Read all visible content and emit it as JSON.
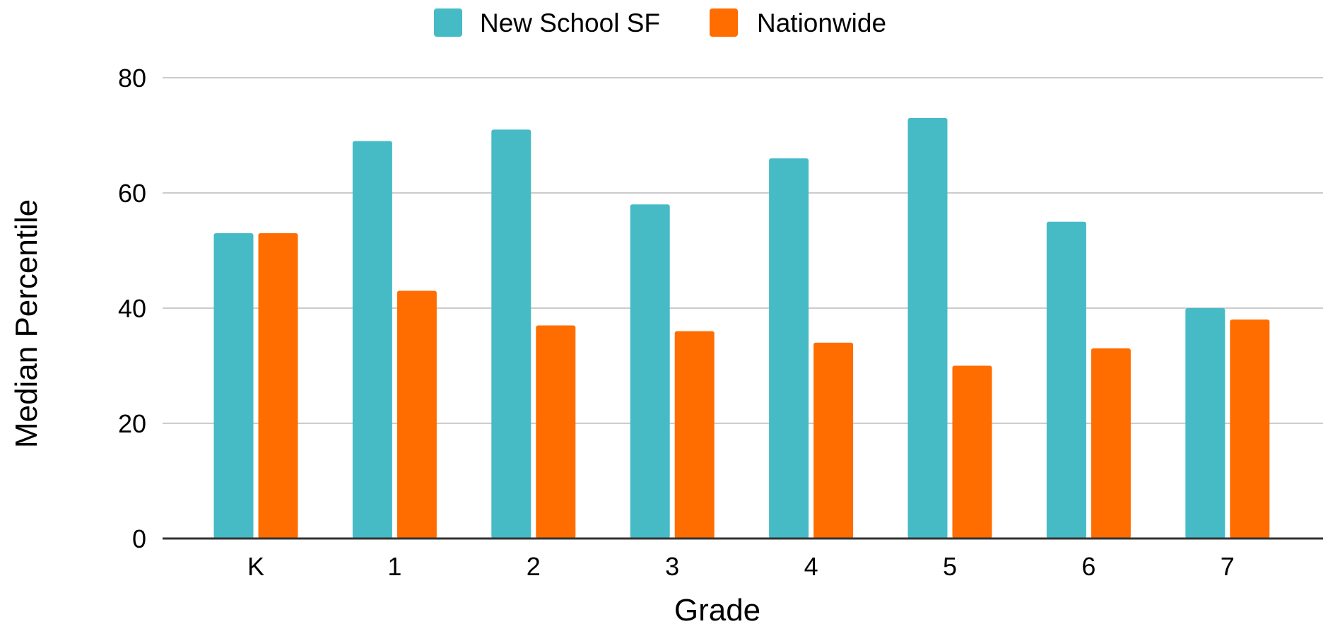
{
  "chart_data": {
    "type": "bar",
    "title": "",
    "categories": [
      "K",
      "1",
      "2",
      "3",
      "4",
      "5",
      "6",
      "7"
    ],
    "series": [
      {
        "name": "New School SF",
        "color": "#46bbc6",
        "values": [
          53,
          69,
          71,
          58,
          66,
          73,
          55,
          40
        ]
      },
      {
        "name": "Nationwide",
        "color": "#ff6d01",
        "values": [
          53,
          43,
          37,
          36,
          34,
          30,
          33,
          38
        ]
      }
    ],
    "xlabel": "Grade",
    "ylabel": "Median Percentile",
    "ylim": [
      0,
      80
    ],
    "yticks": [
      "0",
      "20",
      "40",
      "60",
      "80"
    ],
    "grid": true,
    "legend_position": "top-center"
  }
}
